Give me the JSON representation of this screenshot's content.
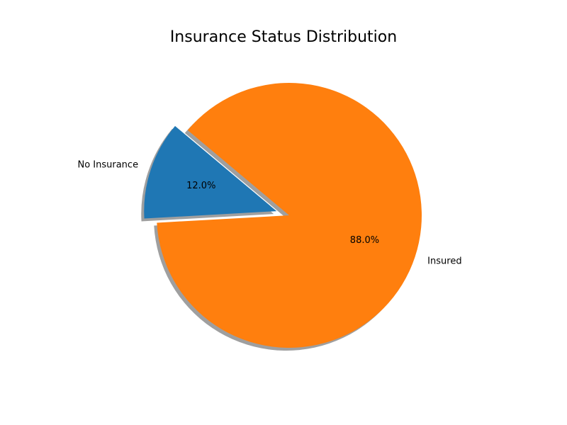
{
  "chart_data": {
    "type": "pie",
    "title": "Insurance Status Distribution",
    "slices": [
      {
        "label": "No Insurance",
        "value": 12.0,
        "percent_label": "12.0%",
        "color": "#1f77b4",
        "exploded": true
      },
      {
        "label": "Insured",
        "value": 88.0,
        "percent_label": "88.0%",
        "color": "#ff7f0e",
        "exploded": false
      }
    ],
    "start_angle_deg": 140,
    "shadow": true,
    "shadow_color": "#7f7f7f",
    "legend": "none"
  }
}
